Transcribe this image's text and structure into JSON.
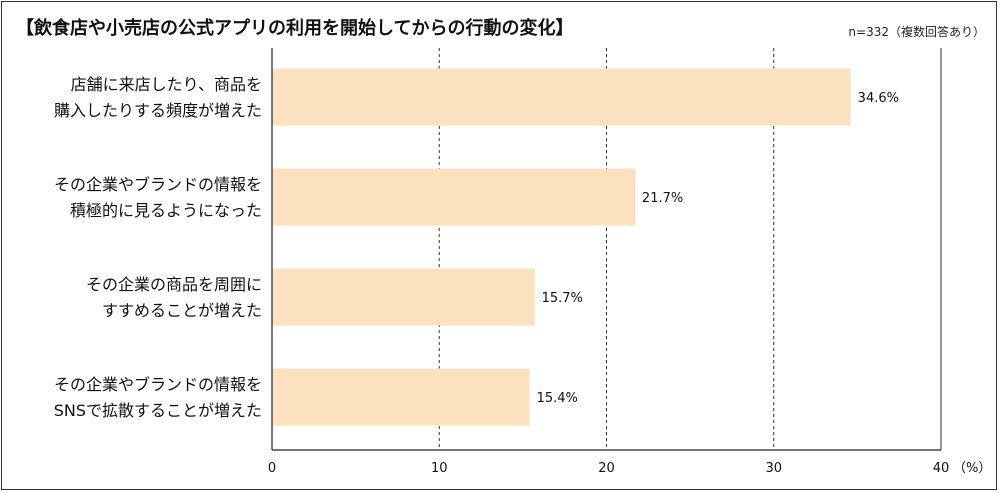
{
  "chart_data": {
    "type": "bar",
    "orientation": "horizontal",
    "title": "【飲食店や小売店の公式アプリの利用を開始してからの行動の変化】",
    "note": "n=332（複数回答あり）",
    "categories": [
      [
        "店舗に来店したり、商品を",
        "購入したりする頻度が増えた"
      ],
      [
        "その企業やブランドの情報を",
        "積極的に見るようになった"
      ],
      [
        "その企業の商品を周囲に",
        "すすめることが増えた"
      ],
      [
        "その企業やブランドの情報を",
        "SNSで拡散することが増えた"
      ]
    ],
    "values": [
      34.6,
      21.7,
      15.7,
      15.4
    ],
    "value_labels": [
      "34.6%",
      "21.7%",
      "15.7%",
      "15.4%"
    ],
    "xlim": [
      0,
      40
    ],
    "xticks": [
      0,
      10,
      20,
      30,
      40
    ],
    "xticklabels": [
      "0",
      "10",
      "20",
      "30",
      "40"
    ],
    "unit_label": "（%）",
    "grid": "vertical-dashed",
    "bar_color": "#fbe1bd",
    "axis_color": "#222222"
  }
}
